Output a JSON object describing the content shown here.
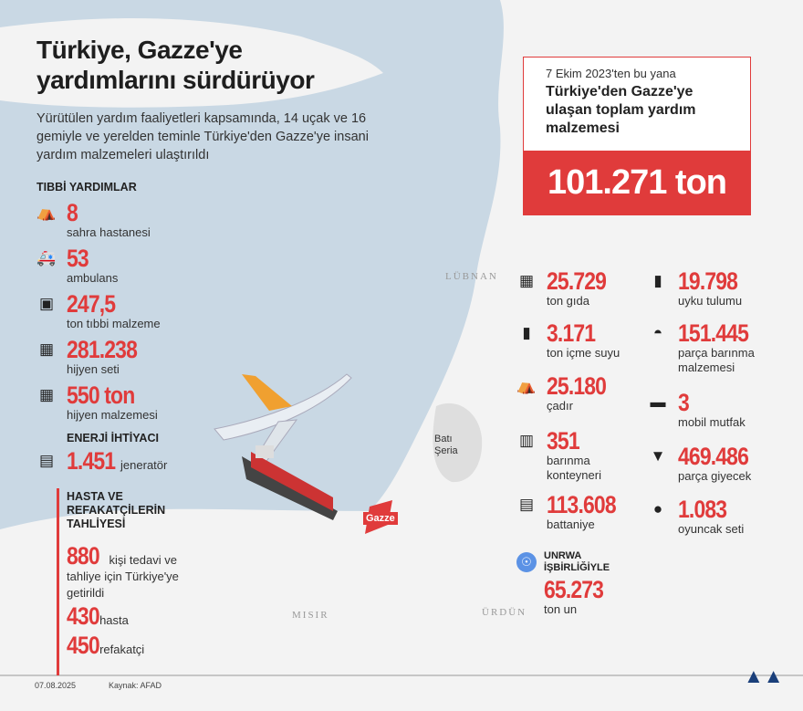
{
  "title": "Türkiye, Gazze'ye yardımlarını sürdürüyor",
  "subtitle": "Yürütülen yardım faaliyetleri kapsamında, 14 uçak ve 16 gemiyle ve yerelden teminle Türkiye'den Gazze'ye insani yardım malzemeleri ulaştırıldı",
  "medical": {
    "heading": "TIBBİ YARDIMLAR",
    "items": [
      {
        "icon": "tent-icon",
        "value": "8",
        "label": "sahra hastanesi"
      },
      {
        "icon": "ambulance-icon",
        "value": "53",
        "label": "ambulans"
      },
      {
        "icon": "medical-box-icon",
        "value": "247,5",
        "label": "ton tıbbi malzeme"
      },
      {
        "icon": "hygiene-kit-icon",
        "value": "281.238",
        "label": "hijyen seti"
      },
      {
        "icon": "hygiene-supplies-icon",
        "value": "550 ton",
        "label": "hijyen malzemesi"
      }
    ]
  },
  "energy": {
    "heading": "ENERJİ İHTİYACI",
    "value": "1.451",
    "label": "jeneratör",
    "icon": "generator-icon"
  },
  "evac": {
    "heading": "HASTA VE REFAKATÇİLERİN TAHLİYESİ",
    "total": "880",
    "total_label": "kişi tedavi ve tahliye için Türkiye'ye getirildi",
    "patients": "430",
    "patients_label": "hasta",
    "companions": "450",
    "companions_label": "refakatçi"
  },
  "summary": {
    "since": "7 Ekim 2023'ten bu yana",
    "desc": "Türkiye'den Gazze'ye ulaşan toplam yardım malzemesi",
    "total": "101.271 ton"
  },
  "aid_left": [
    {
      "icon": "food-icon",
      "value": "25.729",
      "label": "ton gıda"
    },
    {
      "icon": "water-bottle-icon",
      "value": "3.171",
      "label": "ton içme suyu"
    },
    {
      "icon": "tent-icon",
      "value": "25.180",
      "label": "çadır"
    },
    {
      "icon": "container-icon",
      "value": "351",
      "label": "barınma konteyneri"
    },
    {
      "icon": "blanket-icon",
      "value": "113.608",
      "label": "battaniye"
    }
  ],
  "aid_right": [
    {
      "icon": "sleeping-bag-icon",
      "value": "19.798",
      "label": "uyku tulumu"
    },
    {
      "icon": "shelter-icon",
      "value": "151.445",
      "label": "parça barınma malzemesi"
    },
    {
      "icon": "mobile-kitchen-icon",
      "value": "3",
      "label": "mobil mutfak"
    },
    {
      "icon": "clothing-icon",
      "value": "469.486",
      "label": "parça giyecek"
    },
    {
      "icon": "teddy-bear-icon",
      "value": "1.083",
      "label": "oyuncak seti"
    }
  ],
  "unrwa": {
    "heading": "UNRWA İŞBİRLİĞİYLE",
    "value": "65.273",
    "label": "ton un",
    "icon": "un-logo-icon"
  },
  "map_labels": {
    "lebanon": "LÜBNAN",
    "westbank": "Batı Şeria",
    "gaza": "Gazze",
    "egypt": "MISIR",
    "jordan": "ÜRDÜN"
  },
  "footer": {
    "date": "07.08.2025",
    "source": "Kaynak: AFAD",
    "logo": "AA"
  },
  "colors": {
    "accent": "#e03b3b",
    "sea": "#c9d8e4",
    "land": "#f2f2f2"
  }
}
